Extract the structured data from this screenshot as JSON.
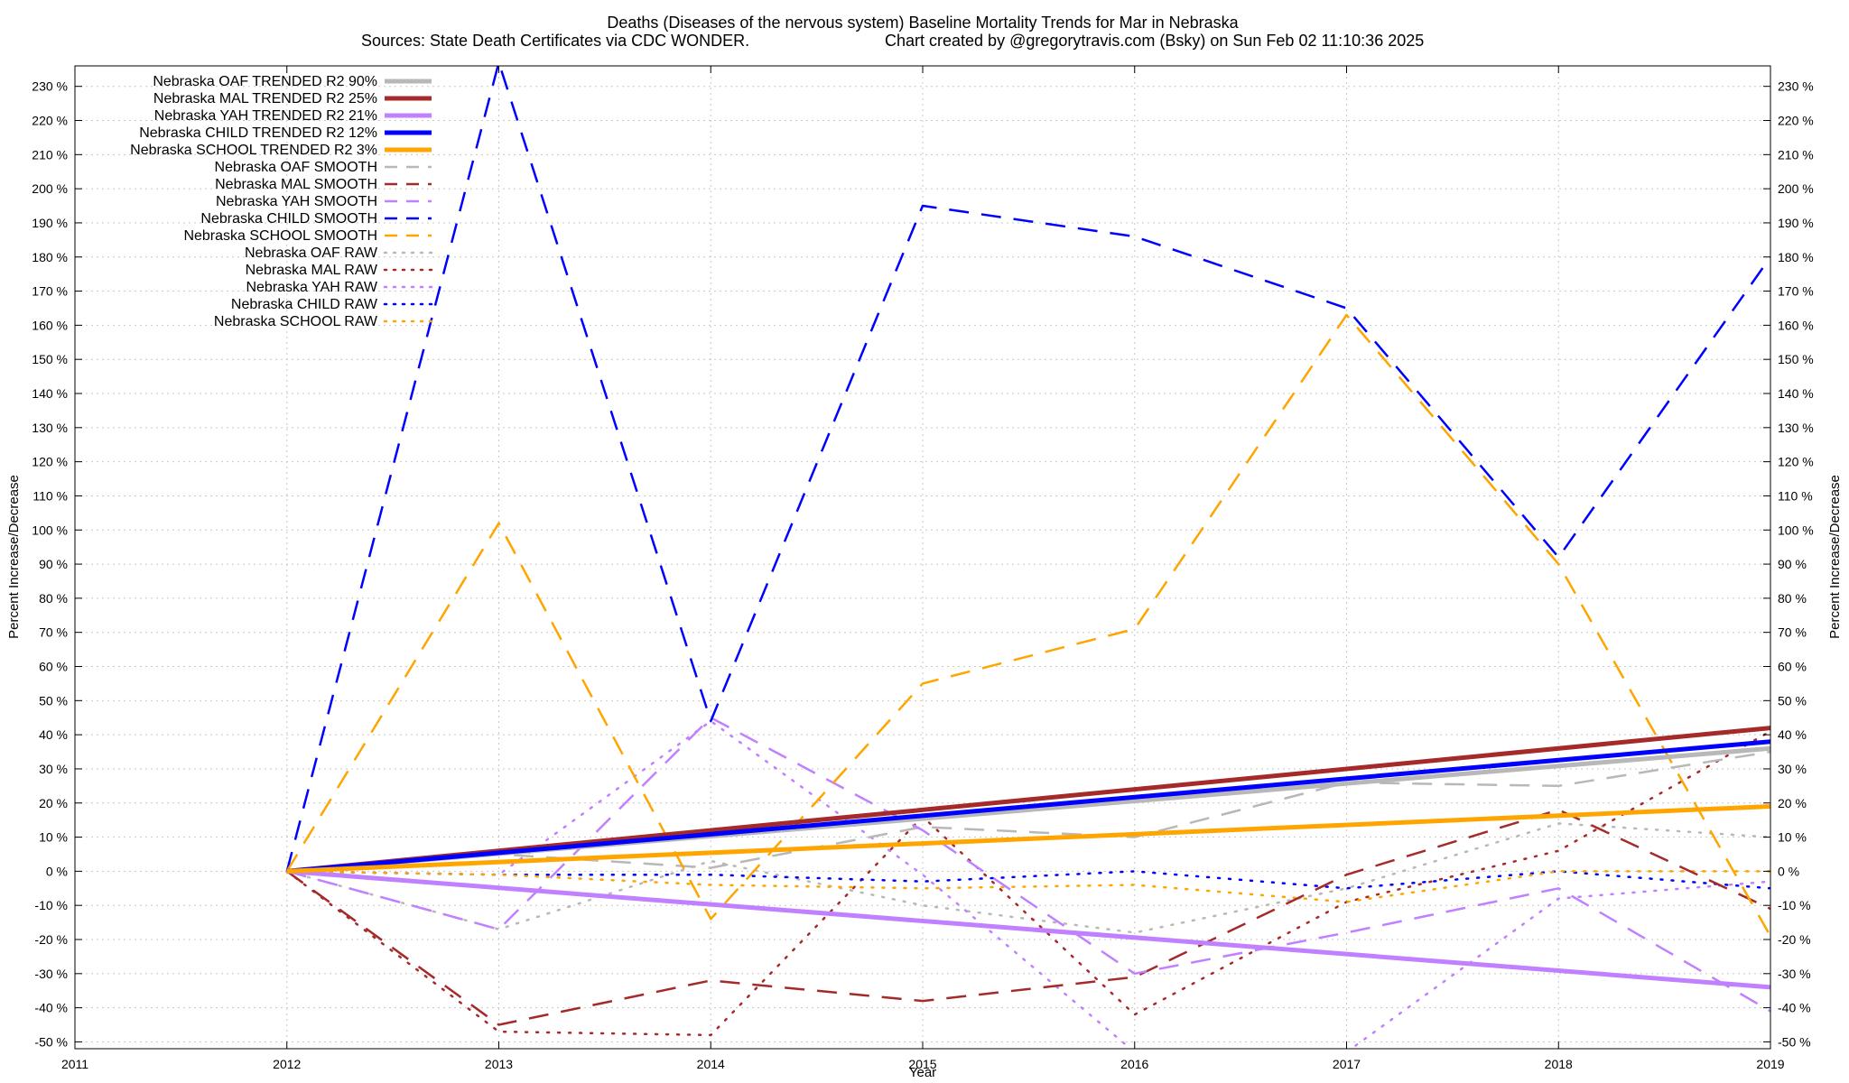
{
  "title_line1": "Deaths (Diseases of the nervous system)  Baseline Mortality Trends for Mar in Nebraska",
  "title_line2_left": "Sources: State Death Certificates via CDC WONDER.",
  "title_line2_right": "Chart created by @gregorytravis.com (Bsky) on Sun Feb 02 11:10:36 2025",
  "chart_data": {
    "type": "line",
    "xlabel": "Year",
    "ylabel": "Percent Increase/Decrease",
    "ylabel_right": "Percent Increase/Decrease",
    "xlim": [
      2011,
      2019
    ],
    "ylim": [
      -52,
      236
    ],
    "x_ticks": [
      2011,
      2012,
      2013,
      2014,
      2015,
      2016,
      2017,
      2018,
      2019
    ],
    "y_ticks": [
      -50,
      -40,
      -30,
      -20,
      -10,
      0,
      10,
      20,
      30,
      40,
      50,
      60,
      70,
      80,
      90,
      100,
      110,
      120,
      130,
      140,
      150,
      160,
      170,
      180,
      190,
      200,
      210,
      220,
      230
    ],
    "y_tick_suffix": " %",
    "grid": true,
    "legend_position": "top-left",
    "series": [
      {
        "name": "Nebraska OAF TRENDED R2  90%",
        "color": "#b8b8b8",
        "style": "solid",
        "width": 5,
        "x": [
          2012,
          2019
        ],
        "y": [
          0,
          36
        ]
      },
      {
        "name": "Nebraska MAL TRENDED R2  25%",
        "color": "#a52a2a",
        "style": "solid",
        "width": 5,
        "x": [
          2012,
          2019
        ],
        "y": [
          0,
          42
        ]
      },
      {
        "name": "Nebraska YAH TRENDED R2  21%",
        "color": "#c080ff",
        "style": "solid",
        "width": 5,
        "x": [
          2012,
          2019
        ],
        "y": [
          0,
          -34
        ]
      },
      {
        "name": "Nebraska CHILD TRENDED R2  12%",
        "color": "#0000ff",
        "style": "solid",
        "width": 5,
        "x": [
          2012,
          2019
        ],
        "y": [
          0,
          38
        ]
      },
      {
        "name": "Nebraska SCHOOL TRENDED R2  3%",
        "color": "#ffa500",
        "style": "solid",
        "width": 5,
        "x": [
          2012,
          2019
        ],
        "y": [
          0,
          19
        ]
      },
      {
        "name": "Nebraska OAF SMOOTH",
        "color": "#b8b8b8",
        "style": "dash",
        "width": 2.5,
        "x": [
          2012,
          2013,
          2014,
          2015,
          2016,
          2017,
          2018,
          2019
        ],
        "y": [
          0,
          5,
          1,
          13,
          10,
          26,
          25,
          35
        ]
      },
      {
        "name": "Nebraska MAL SMOOTH",
        "color": "#a52a2a",
        "style": "dash",
        "width": 2.5,
        "x": [
          2012,
          2013,
          2014,
          2015,
          2016,
          2017,
          2018,
          2019
        ],
        "y": [
          0,
          -45,
          -32,
          -38,
          -31,
          -1,
          18,
          -11
        ]
      },
      {
        "name": "Nebraska YAH SMOOTH",
        "color": "#c080ff",
        "style": "dash",
        "width": 2.5,
        "x": [
          2012,
          2013,
          2014,
          2015,
          2016,
          2017,
          2018,
          2019
        ],
        "y": [
          0,
          -17,
          45,
          12,
          -30,
          -18,
          -5,
          -41
        ]
      },
      {
        "name": "Nebraska CHILD SMOOTH",
        "color": "#0000ff",
        "style": "dash",
        "width": 2.5,
        "x": [
          2012,
          2013,
          2014,
          2015,
          2016,
          2017,
          2018,
          2019
        ],
        "y": [
          0,
          237,
          44,
          195,
          186,
          165,
          92,
          180
        ]
      },
      {
        "name": "Nebraska SCHOOL SMOOTH",
        "color": "#ffa500",
        "style": "dash",
        "width": 2.5,
        "x": [
          2012,
          2013,
          2014,
          2015,
          2016,
          2017,
          2018,
          2019
        ],
        "y": [
          0,
          102,
          -14,
          55,
          71,
          163,
          90,
          -19
        ]
      },
      {
        "name": "Nebraska OAF RAW",
        "color": "#b8b8b8",
        "style": "dot",
        "width": 2.5,
        "x": [
          2012,
          2013,
          2014,
          2015,
          2016,
          2017,
          2018,
          2019
        ],
        "y": [
          0,
          -17,
          3,
          -10,
          -18,
          -5,
          14,
          10
        ]
      },
      {
        "name": "Nebraska MAL RAW",
        "color": "#a52a2a",
        "style": "dot",
        "width": 2.5,
        "x": [
          2012,
          2013,
          2014,
          2015,
          2016,
          2017,
          2018,
          2019
        ],
        "y": [
          0,
          -47,
          -48,
          16,
          -42,
          -9,
          6,
          41
        ]
      },
      {
        "name": "Nebraska YAH RAW",
        "color": "#c080ff",
        "style": "dot",
        "width": 2.5,
        "x": [
          2012,
          2013,
          2014,
          2015,
          2016,
          2017,
          2018,
          2019
        ],
        "y": [
          0,
          -1,
          44,
          -1,
          -53,
          -53,
          -8,
          -3
        ]
      },
      {
        "name": "Nebraska CHILD RAW",
        "color": "#0000ff",
        "style": "dot",
        "width": 2.5,
        "x": [
          2012,
          2013,
          2014,
          2015,
          2016,
          2017,
          2018,
          2019
        ],
        "y": [
          0,
          -1,
          -1,
          -3,
          0,
          -5,
          0,
          -5
        ]
      },
      {
        "name": "Nebraska SCHOOL RAW",
        "color": "#ffa500",
        "style": "dot",
        "width": 2.5,
        "x": [
          2012,
          2013,
          2014,
          2015,
          2016,
          2017,
          2018,
          2019
        ],
        "y": [
          0,
          -1,
          -4,
          -5,
          -4,
          -9,
          0,
          0
        ]
      }
    ]
  }
}
